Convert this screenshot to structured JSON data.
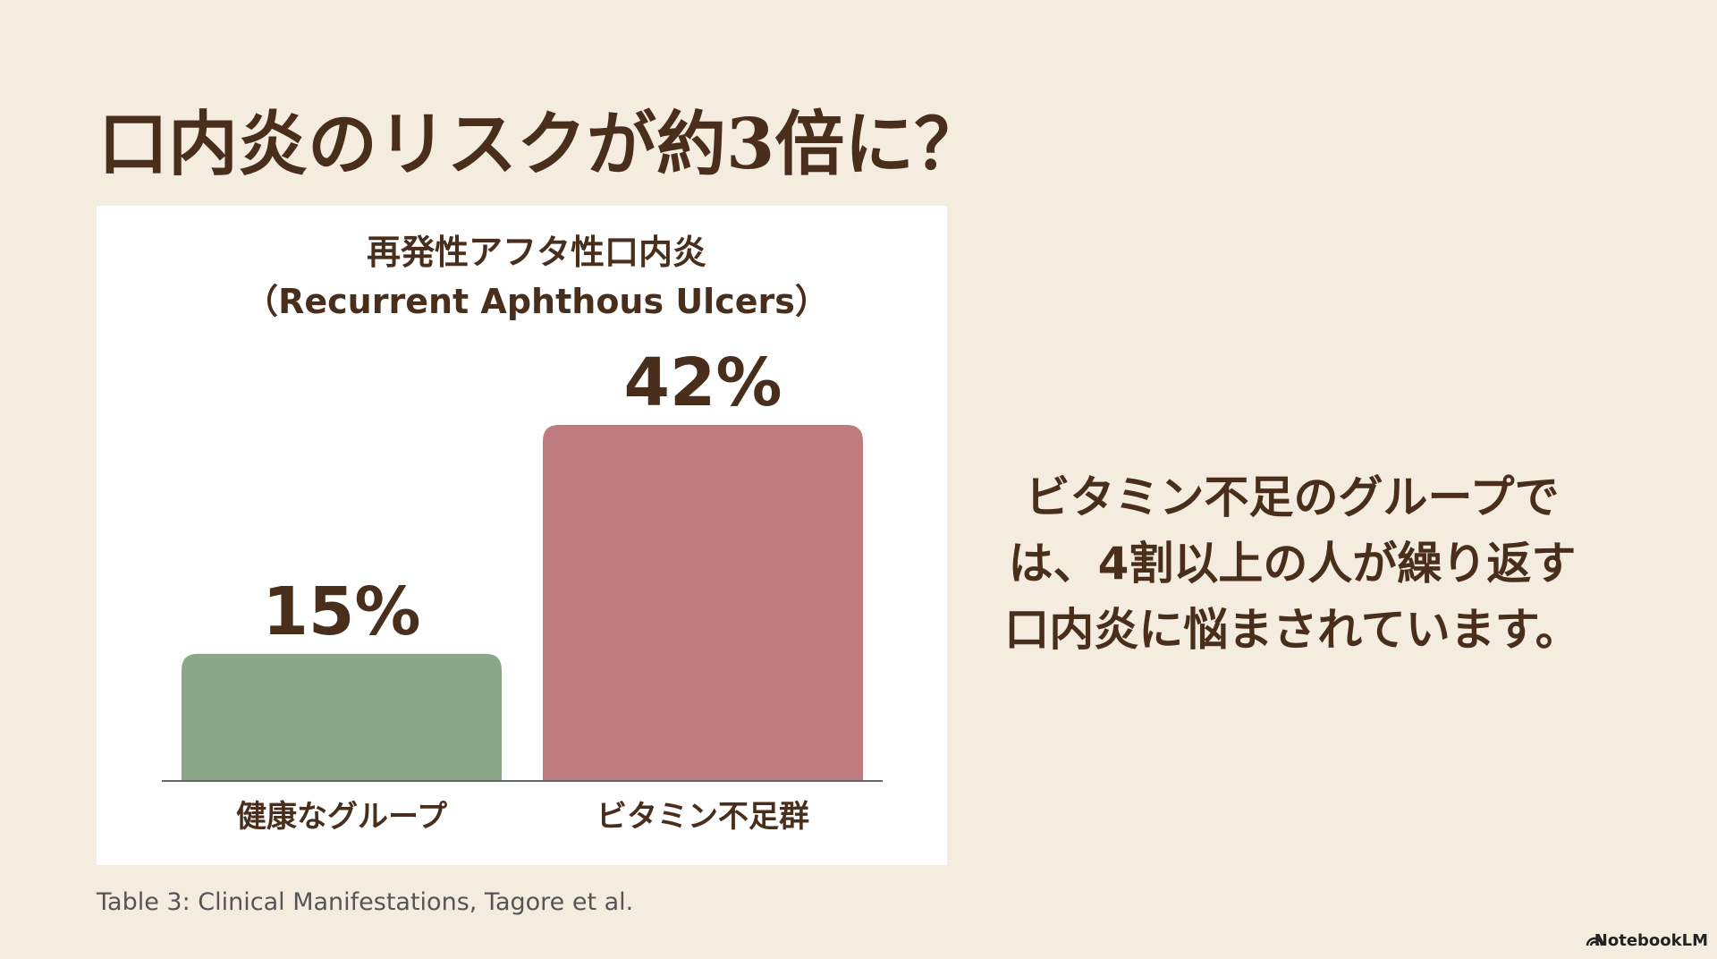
{
  "slide": {
    "title": "口内炎のリスクが約3倍に？",
    "body": [
      "ビタミン不足のグループで",
      "は、4割以上の人が繰り返す",
      "口内炎に悩まされています。"
    ],
    "source": "Table 3: Clinical Manifestations, Tagore et al.",
    "brand": "NotebookLM"
  },
  "chart_data": {
    "type": "bar",
    "title": [
      "再発性アフタ性口内炎",
      "（Recurrent Aphthous Ulcers）"
    ],
    "categories": [
      "健康なグループ",
      "ビタミン不足群"
    ],
    "values": [
      15,
      42
    ],
    "value_labels": [
      "15%",
      "42%"
    ],
    "colors": [
      "#8aa888",
      "#bf7c7e"
    ]
  }
}
